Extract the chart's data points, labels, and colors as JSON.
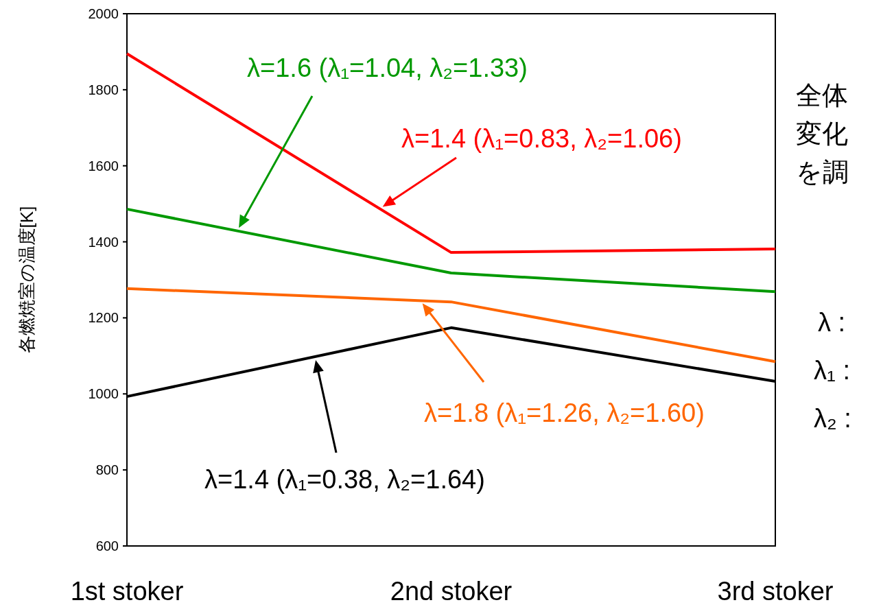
{
  "chart_data": {
    "type": "line",
    "ylabel": "各燃焼室の温度[K]",
    "categories": [
      "1st stoker",
      "2nd stoker",
      "3rd stoker"
    ],
    "series": [
      {
        "color": "#ff0000",
        "values": [
          1895,
          1372,
          1381
        ]
      },
      {
        "color": "#009900",
        "values": [
          1486,
          1318,
          1269
        ]
      },
      {
        "color": "#ff6600",
        "values": [
          1277,
          1242,
          1085
        ]
      },
      {
        "color": "#000000",
        "values": [
          993,
          1174,
          1033
        ]
      }
    ],
    "ylim": [
      600,
      2000
    ],
    "yticks": [
      600,
      800,
      1000,
      1200,
      1400,
      1600,
      1800,
      2000
    ],
    "grid": false,
    "marker": "none",
    "line_style": "solid",
    "annotations": [
      "λ=1.6 (λ₁=1.04, λ₂=1.33)",
      "λ=1.4 (λ₁=0.83, λ₂=1.06)",
      "λ=1.8 (λ₁=1.26, λ₂=1.60)",
      "λ=1.4 (λ₁=0.38, λ₂=1.64)",
      "全体",
      "変化",
      "を調",
      "λ :",
      "λ₁ :",
      "λ₂ :"
    ]
  }
}
